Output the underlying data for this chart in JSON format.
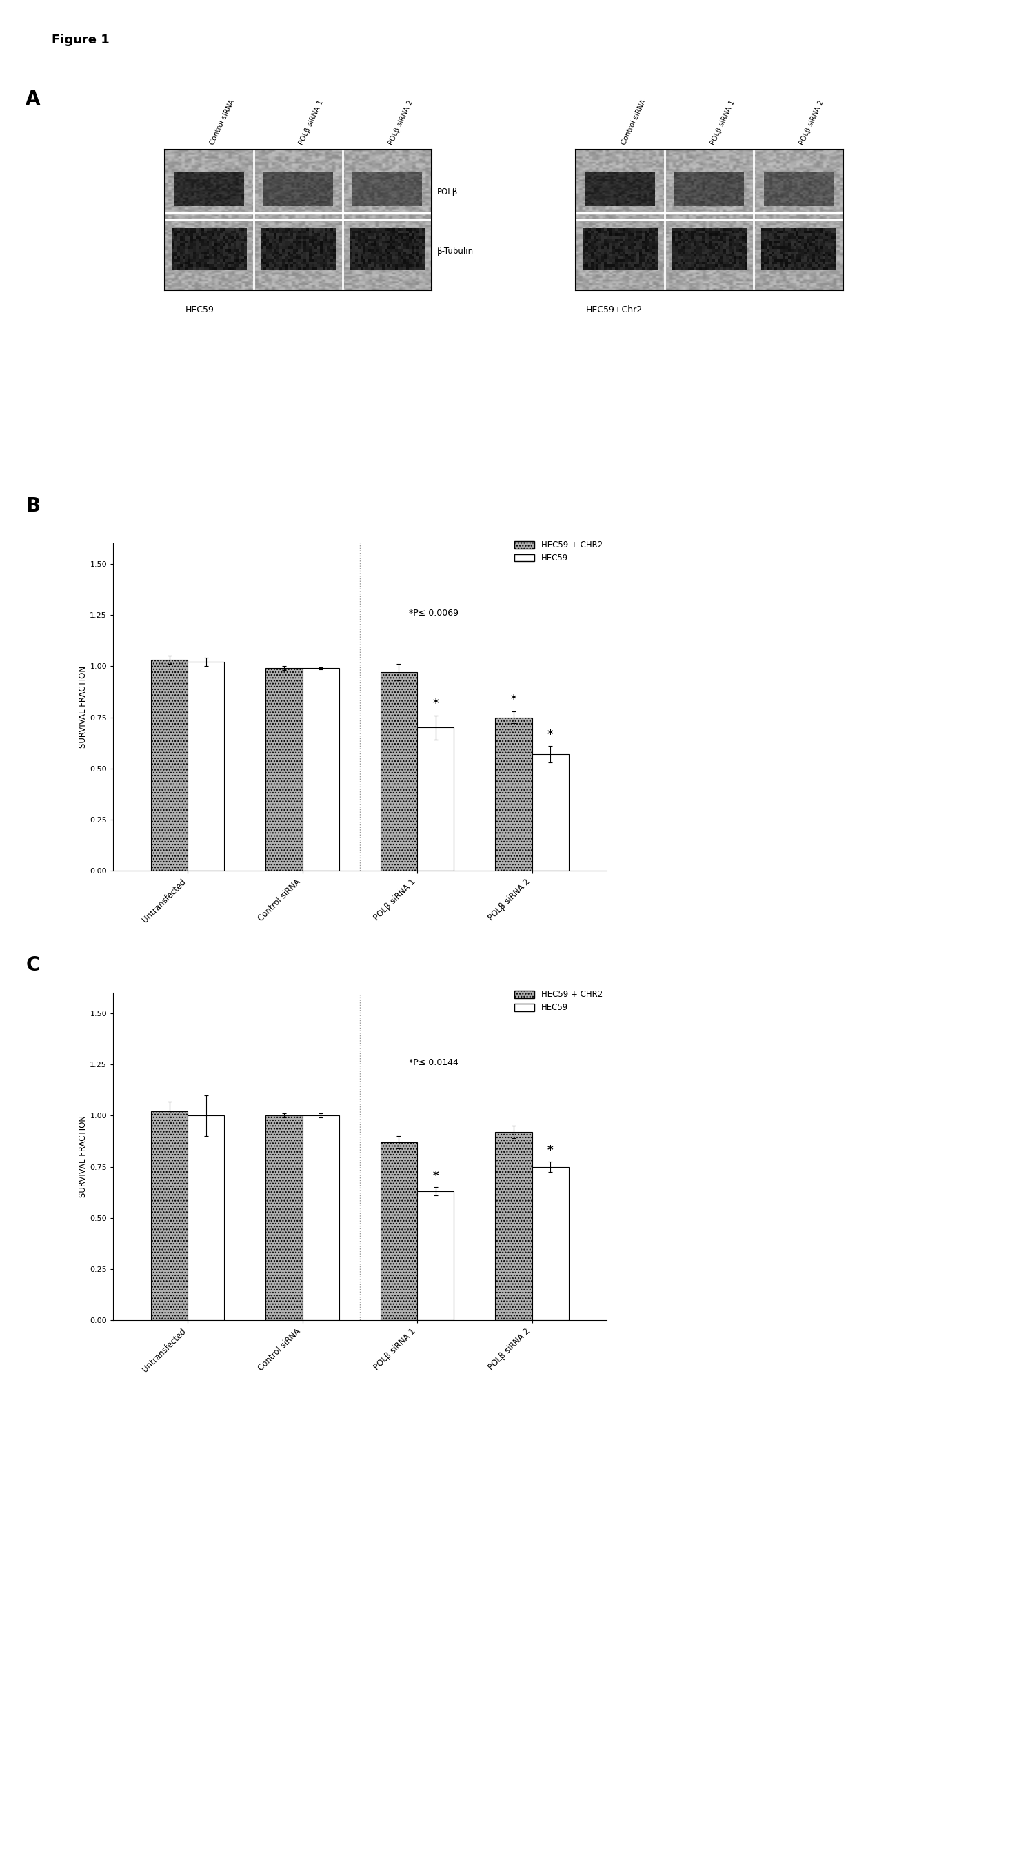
{
  "figure_label": "Figure 1",
  "panel_A_label": "A",
  "panel_B_label": "B",
  "panel_C_label": "C",
  "blot_col_labels": [
    "Control siRNA",
    "POLβ siRNA 1",
    "POLβ siRNA 2"
  ],
  "blot_row_labels": [
    "POLβ",
    "β-Tubulin"
  ],
  "blot_cell_labels": [
    "HEC59",
    "HEC59+Chr2"
  ],
  "bar_categories": [
    "Untransfected",
    "Control siRNA",
    "POLβ siRNA 1",
    "POLβ siRNA 2"
  ],
  "panel_B": {
    "hec59chr2_values": [
      1.03,
      0.99,
      0.97,
      0.75
    ],
    "hec59_values": [
      1.02,
      0.99,
      0.7,
      0.57
    ],
    "hec59chr2_errors": [
      0.02,
      0.01,
      0.04,
      0.03
    ],
    "hec59_errors": [
      0.02,
      0.005,
      0.06,
      0.04
    ],
    "ylabel": "SURVIVAL FRACTION",
    "ylim": [
      0.0,
      1.6
    ],
    "yticks": [
      0.0,
      0.25,
      0.5,
      0.75,
      1.0,
      1.25,
      1.5
    ],
    "pvalue_text": "*P≤ 0.0069",
    "star_on_white": [
      2,
      3
    ],
    "star_on_hatched": [
      3
    ],
    "legend_labels": [
      "HEC59 + CHR2",
      "HEC59"
    ]
  },
  "panel_C": {
    "hec59chr2_values": [
      1.02,
      1.0,
      0.87,
      0.92
    ],
    "hec59_values": [
      1.0,
      1.0,
      0.63,
      0.75
    ],
    "hec59chr2_errors": [
      0.05,
      0.01,
      0.03,
      0.03
    ],
    "hec59_errors": [
      0.1,
      0.01,
      0.02,
      0.025
    ],
    "ylabel": "SURVIVAL FRACTION",
    "ylim": [
      0.0,
      1.6
    ],
    "yticks": [
      0.0,
      0.25,
      0.5,
      0.75,
      1.0,
      1.25,
      1.5
    ],
    "pvalue_text": "*P≤ 0.0144",
    "star_on_white": [
      2,
      3
    ],
    "star_on_hatched": [],
    "legend_labels": [
      "HEC59 + CHR2",
      "HEC59"
    ]
  },
  "bg_color": "#ffffff",
  "stipple_color": "#888888",
  "bar_width": 0.32
}
